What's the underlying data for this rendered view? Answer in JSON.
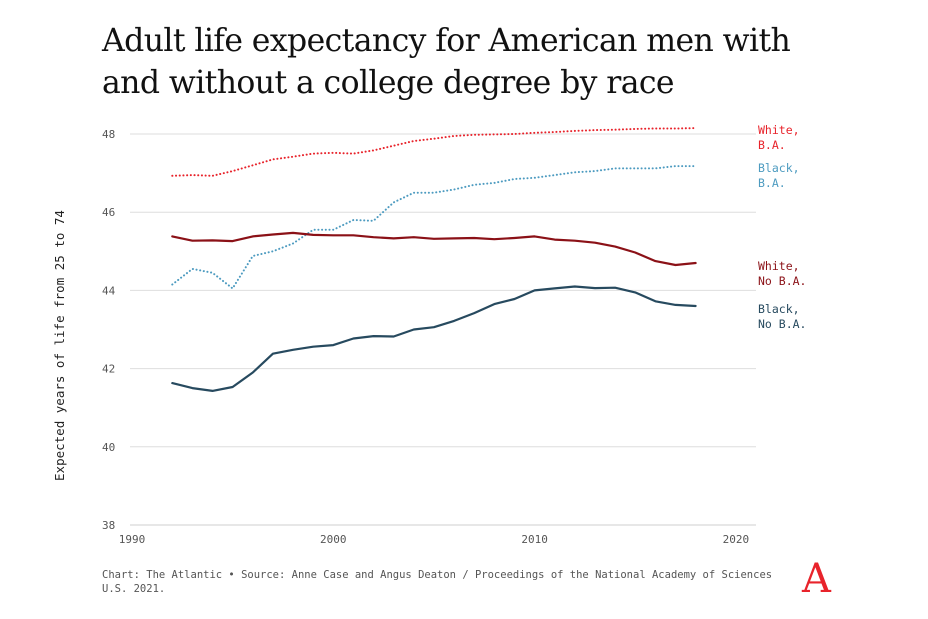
{
  "chart_data": {
    "type": "line",
    "title": "Adult life expectancy for American men with and without a college degree by race",
    "ylabel": "Expected years of life from 25 to 74",
    "xlabel": "",
    "xlim": [
      1990,
      2021
    ],
    "ylim": [
      38,
      48
    ],
    "xticks": [
      1990,
      2000,
      2010,
      2020
    ],
    "yticks": [
      38,
      40,
      42,
      44,
      46,
      48
    ],
    "grid": true,
    "series": [
      {
        "name": "White, B.A.",
        "label_lines": [
          "White,",
          "B.A."
        ],
        "color": "#e8232b",
        "style": "dotted",
        "x": [
          1992,
          1993,
          1994,
          1995,
          1996,
          1997,
          1998,
          1999,
          2000,
          2001,
          2002,
          2003,
          2004,
          2005,
          2006,
          2007,
          2008,
          2009,
          2010,
          2011,
          2012,
          2013,
          2014,
          2015,
          2016,
          2017,
          2018
        ],
        "values": [
          46.93,
          46.95,
          46.93,
          47.05,
          47.2,
          47.35,
          47.42,
          47.5,
          47.52,
          47.5,
          47.58,
          47.7,
          47.82,
          47.88,
          47.95,
          47.98,
          47.99,
          48.0,
          48.03,
          48.05,
          48.08,
          48.1,
          48.11,
          48.13,
          48.14,
          48.14,
          48.15
        ]
      },
      {
        "name": "Black, B.A.",
        "label_lines": [
          "Black,",
          "B.A."
        ],
        "color": "#4d9bc0",
        "style": "dotted",
        "x": [
          1992,
          1993,
          1994,
          1995,
          1996,
          1997,
          1998,
          1999,
          2000,
          2001,
          2002,
          2003,
          2004,
          2005,
          2006,
          2007,
          2008,
          2009,
          2010,
          2011,
          2012,
          2013,
          2014,
          2015,
          2016,
          2017,
          2018
        ],
        "values": [
          44.15,
          44.55,
          44.45,
          44.05,
          44.88,
          45.0,
          45.2,
          45.55,
          45.55,
          45.8,
          45.78,
          46.25,
          46.5,
          46.5,
          46.58,
          46.7,
          46.75,
          46.85,
          46.88,
          46.95,
          47.02,
          47.05,
          47.12,
          47.12,
          47.12,
          47.18,
          47.18
        ]
      },
      {
        "name": "White, No B.A.",
        "label_lines": [
          "White,",
          "No B.A."
        ],
        "color": "#8b1117",
        "style": "solid",
        "x": [
          1992,
          1993,
          1994,
          1995,
          1996,
          1997,
          1998,
          1999,
          2000,
          2001,
          2002,
          2003,
          2004,
          2005,
          2006,
          2007,
          2008,
          2009,
          2010,
          2011,
          2012,
          2013,
          2014,
          2015,
          2016,
          2017,
          2018
        ],
        "values": [
          45.38,
          45.27,
          45.28,
          45.26,
          45.38,
          45.43,
          45.47,
          45.42,
          45.41,
          45.41,
          45.36,
          45.33,
          45.36,
          45.32,
          45.33,
          45.34,
          45.31,
          45.34,
          45.38,
          45.3,
          45.27,
          45.22,
          45.12,
          44.97,
          44.75,
          44.65,
          44.7
        ]
      },
      {
        "name": "Black, No B.A.",
        "label_lines": [
          "Black,",
          "No B.A."
        ],
        "color": "#274a5f",
        "style": "solid",
        "x": [
          1992,
          1993,
          1994,
          1995,
          1996,
          1997,
          1998,
          1999,
          2000,
          2001,
          2002,
          2003,
          2004,
          2005,
          2006,
          2007,
          2008,
          2009,
          2010,
          2011,
          2012,
          2013,
          2014,
          2015,
          2016,
          2017,
          2018
        ],
        "values": [
          41.63,
          41.5,
          41.43,
          41.53,
          41.9,
          42.38,
          42.48,
          42.56,
          42.6,
          42.77,
          42.83,
          42.82,
          43.0,
          43.06,
          43.22,
          43.42,
          43.65,
          43.78,
          44.0,
          44.05,
          44.1,
          44.06,
          44.07,
          43.95,
          43.72,
          43.63,
          43.6
        ]
      }
    ]
  },
  "footer": {
    "source": "Chart: The Atlantic • Source: Anne Case and Angus Deaton / Proceedings of the National Academy of Sciences U.S. 2021.",
    "logo": "A"
  }
}
